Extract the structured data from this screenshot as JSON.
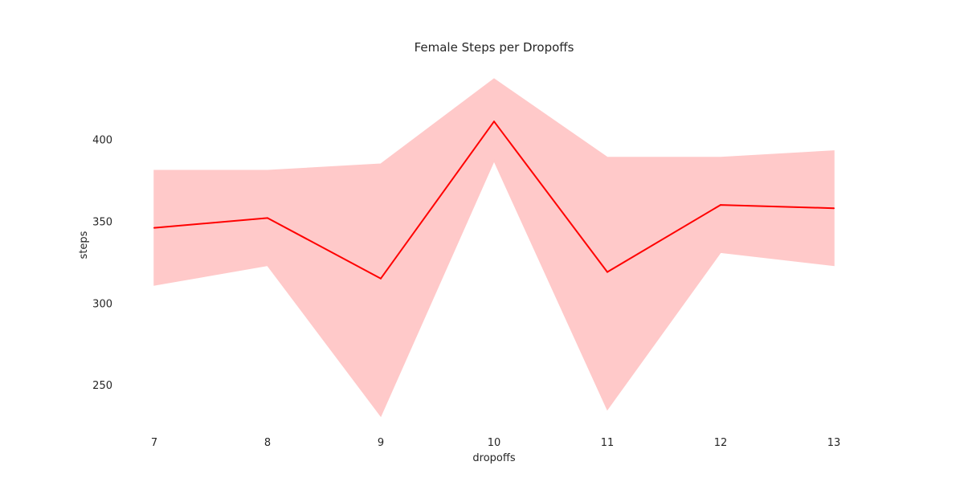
{
  "chart_data": {
    "type": "line",
    "title": "Female Steps per Dropoffs",
    "xlabel": "dropoffs",
    "ylabel": "steps",
    "x": [
      7,
      8,
      9,
      10,
      11,
      12,
      13
    ],
    "series": [
      {
        "values": [
          346,
          352,
          315,
          411,
          319,
          360,
          358
        ],
        "ci_upper": [
          381,
          381,
          385,
          437,
          389,
          389,
          393
        ],
        "ci_lower": [
          311,
          323,
          231,
          387,
          235,
          331,
          323
        ],
        "color": "#ff0000",
        "band_color": "#ffc9c9"
      }
    ],
    "xticks": [
      "7",
      "8",
      "9",
      "10",
      "11",
      "12",
      "13"
    ],
    "yticks": [
      "250",
      "300",
      "350",
      "400"
    ],
    "ytick_values": [
      250,
      300,
      350,
      400
    ],
    "xlim": [
      7,
      13
    ],
    "ylim": [
      226,
      444
    ],
    "grid": false,
    "legend": "none"
  }
}
